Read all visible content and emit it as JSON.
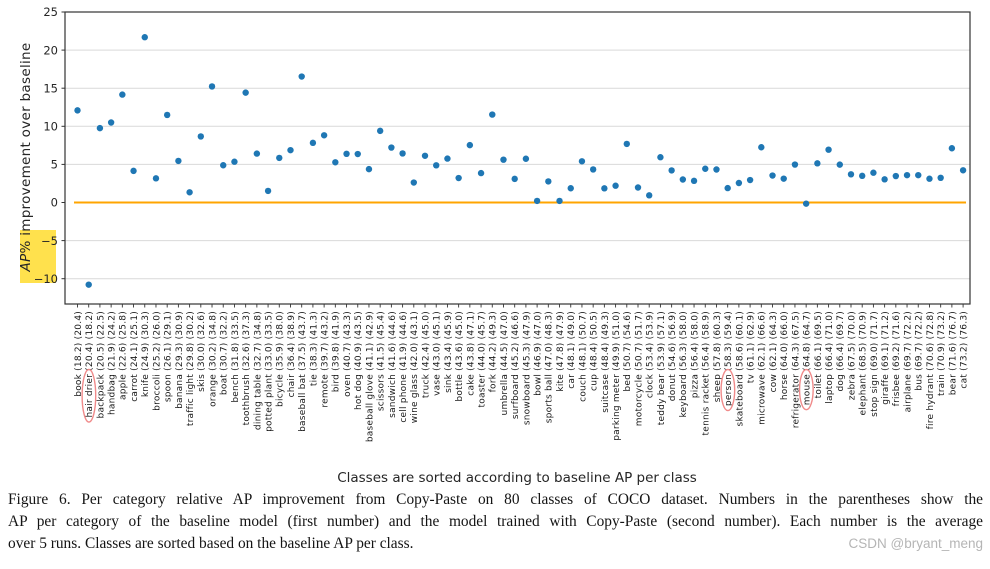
{
  "figure": {
    "caption_lines": [
      "Figure 6. Per category relative AP improvement from Copy-Paste on 80 classes of COCO dataset. Numbers in the parentheses show the",
      "AP per category of the baseline model (first number) and the model trained with Copy-Paste (second number). Each number is the average",
      "over 5 runs. Classes are sorted based on the baseline AP per class."
    ],
    "watermark": "CSDN @bryant_meng"
  },
  "chart_data": {
    "type": "scatter",
    "title": "",
    "xlabel": "Classes are sorted according to baseline AP per class",
    "ylabel": {
      "italic_part": "AP",
      "highlighted_text": "AP%",
      "rest": "% improvement over baseline"
    },
    "ylim": [
      -13.3,
      25
    ],
    "yticks": [
      25,
      20,
      15,
      10,
      5,
      0,
      -5,
      -10
    ],
    "grid": true,
    "legend": "none",
    "zero_line_value": 0,
    "x_label_format": "name (baseline) (copy_paste)",
    "improvement_formula": "(copy_paste - baseline) / baseline * 100",
    "circled_classes": [
      "hair drier",
      "person",
      "mouse"
    ],
    "colors": {
      "point": "#1f77b4",
      "zero_line": "#FFA500",
      "grid": "#d9d9d9",
      "spine": "#333333",
      "tick_text": "#262626",
      "highlight_yellow": "#FFE14D",
      "circle_annotation": "#F08A8A",
      "watermark_gray": "#b5b5b5"
    },
    "classes": [
      {
        "name": "book",
        "baseline": 18.2,
        "copy_paste": 20.4,
        "improvement_pct": 12.09
      },
      {
        "name": "hair drier",
        "baseline": 20.4,
        "copy_paste": 18.2,
        "improvement_pct": -10.78
      },
      {
        "name": "backpack",
        "baseline": 20.5,
        "copy_paste": 22.5,
        "improvement_pct": 9.76
      },
      {
        "name": "handbag",
        "baseline": 21.9,
        "copy_paste": 24.2,
        "improvement_pct": 10.5
      },
      {
        "name": "apple",
        "baseline": 22.6,
        "copy_paste": 25.8,
        "improvement_pct": 14.16
      },
      {
        "name": "carrot",
        "baseline": 24.1,
        "copy_paste": 25.1,
        "improvement_pct": 4.15
      },
      {
        "name": "knife",
        "baseline": 24.9,
        "copy_paste": 30.3,
        "improvement_pct": 21.69
      },
      {
        "name": "broccoli",
        "baseline": 25.2,
        "copy_paste": 26.0,
        "improvement_pct": 3.17
      },
      {
        "name": "spoon",
        "baseline": 26.1,
        "copy_paste": 29.1,
        "improvement_pct": 11.49
      },
      {
        "name": "banana",
        "baseline": 29.3,
        "copy_paste": 30.9,
        "improvement_pct": 5.46
      },
      {
        "name": "traffic light",
        "baseline": 29.8,
        "copy_paste": 30.2,
        "improvement_pct": 1.34
      },
      {
        "name": "skis",
        "baseline": 30.0,
        "copy_paste": 32.6,
        "improvement_pct": 8.67
      },
      {
        "name": "orange",
        "baseline": 30.2,
        "copy_paste": 34.8,
        "improvement_pct": 15.23
      },
      {
        "name": "boat",
        "baseline": 30.7,
        "copy_paste": 32.2,
        "improvement_pct": 4.89
      },
      {
        "name": "bench",
        "baseline": 31.8,
        "copy_paste": 33.5,
        "improvement_pct": 5.35
      },
      {
        "name": "toothbrush",
        "baseline": 32.6,
        "copy_paste": 37.3,
        "improvement_pct": 14.42
      },
      {
        "name": "dining table",
        "baseline": 32.7,
        "copy_paste": 34.8,
        "improvement_pct": 6.42
      },
      {
        "name": "potted plant",
        "baseline": 33.0,
        "copy_paste": 33.5,
        "improvement_pct": 1.52
      },
      {
        "name": "bicycle",
        "baseline": 35.9,
        "copy_paste": 38.0,
        "improvement_pct": 5.85
      },
      {
        "name": "chair",
        "baseline": 36.4,
        "copy_paste": 38.9,
        "improvement_pct": 6.87
      },
      {
        "name": "baseball bat",
        "baseline": 37.5,
        "copy_paste": 43.7,
        "improvement_pct": 16.53
      },
      {
        "name": "tie",
        "baseline": 38.3,
        "copy_paste": 41.3,
        "improvement_pct": 7.83
      },
      {
        "name": "remote",
        "baseline": 39.7,
        "copy_paste": 43.2,
        "improvement_pct": 8.82
      },
      {
        "name": "bird",
        "baseline": 39.8,
        "copy_paste": 41.9,
        "improvement_pct": 5.28
      },
      {
        "name": "oven",
        "baseline": 40.7,
        "copy_paste": 43.3,
        "improvement_pct": 6.39
      },
      {
        "name": "hot dog",
        "baseline": 40.9,
        "copy_paste": 43.5,
        "improvement_pct": 6.36
      },
      {
        "name": "baseball glove",
        "baseline": 41.1,
        "copy_paste": 42.9,
        "improvement_pct": 4.38
      },
      {
        "name": "scissors",
        "baseline": 41.5,
        "copy_paste": 45.4,
        "improvement_pct": 9.4
      },
      {
        "name": "sandwich",
        "baseline": 41.6,
        "copy_paste": 44.6,
        "improvement_pct": 7.21
      },
      {
        "name": "cell phone",
        "baseline": 41.9,
        "copy_paste": 44.6,
        "improvement_pct": 6.44
      },
      {
        "name": "wine glass",
        "baseline": 42.0,
        "copy_paste": 43.1,
        "improvement_pct": 2.62
      },
      {
        "name": "truck",
        "baseline": 42.4,
        "copy_paste": 45.0,
        "improvement_pct": 6.13
      },
      {
        "name": "vase",
        "baseline": 43.0,
        "copy_paste": 45.1,
        "improvement_pct": 4.88
      },
      {
        "name": "sink",
        "baseline": 43.4,
        "copy_paste": 45.9,
        "improvement_pct": 5.76
      },
      {
        "name": "bottle",
        "baseline": 43.6,
        "copy_paste": 45.0,
        "improvement_pct": 3.21
      },
      {
        "name": "cake",
        "baseline": 43.8,
        "copy_paste": 47.1,
        "improvement_pct": 7.53
      },
      {
        "name": "toaster",
        "baseline": 44.0,
        "copy_paste": 45.7,
        "improvement_pct": 3.86
      },
      {
        "name": "fork",
        "baseline": 44.2,
        "copy_paste": 49.3,
        "improvement_pct": 11.54
      },
      {
        "name": "umbrella",
        "baseline": 44.5,
        "copy_paste": 47.0,
        "improvement_pct": 5.62
      },
      {
        "name": "surfboard",
        "baseline": 45.2,
        "copy_paste": 46.6,
        "improvement_pct": 3.1
      },
      {
        "name": "snowboard",
        "baseline": 45.3,
        "copy_paste": 47.9,
        "improvement_pct": 5.74
      },
      {
        "name": "bowl",
        "baseline": 46.9,
        "copy_paste": 47.0,
        "improvement_pct": 0.21
      },
      {
        "name": "sports ball",
        "baseline": 47.0,
        "copy_paste": 48.3,
        "improvement_pct": 2.77
      },
      {
        "name": "kite",
        "baseline": 47.8,
        "copy_paste": 47.9,
        "improvement_pct": 0.21
      },
      {
        "name": "car",
        "baseline": 48.1,
        "copy_paste": 49.0,
        "improvement_pct": 1.87
      },
      {
        "name": "couch",
        "baseline": 48.1,
        "copy_paste": 50.7,
        "improvement_pct": 5.41
      },
      {
        "name": "cup",
        "baseline": 48.4,
        "copy_paste": 50.5,
        "improvement_pct": 4.34
      },
      {
        "name": "suitcase",
        "baseline": 48.4,
        "copy_paste": 49.3,
        "improvement_pct": 1.86
      },
      {
        "name": "parking meter",
        "baseline": 49.9,
        "copy_paste": 51.0,
        "improvement_pct": 2.2
      },
      {
        "name": "bed",
        "baseline": 50.7,
        "copy_paste": 54.6,
        "improvement_pct": 7.69
      },
      {
        "name": "motorcycle",
        "baseline": 50.7,
        "copy_paste": 51.7,
        "improvement_pct": 1.97
      },
      {
        "name": "clock",
        "baseline": 53.4,
        "copy_paste": 53.9,
        "improvement_pct": 0.94
      },
      {
        "name": "teddy bear",
        "baseline": 53.9,
        "copy_paste": 57.1,
        "improvement_pct": 5.94
      },
      {
        "name": "donut",
        "baseline": 54.6,
        "copy_paste": 56.9,
        "improvement_pct": 4.21
      },
      {
        "name": "keyboard",
        "baseline": 56.3,
        "copy_paste": 58.0,
        "improvement_pct": 3.02
      },
      {
        "name": "pizza",
        "baseline": 56.4,
        "copy_paste": 58.0,
        "improvement_pct": 2.84
      },
      {
        "name": "tennis racket",
        "baseline": 56.4,
        "copy_paste": 58.9,
        "improvement_pct": 4.43
      },
      {
        "name": "sheep",
        "baseline": 57.8,
        "copy_paste": 60.3,
        "improvement_pct": 4.33
      },
      {
        "name": "person",
        "baseline": 58.3,
        "copy_paste": 59.4,
        "improvement_pct": 1.89
      },
      {
        "name": "skateboard",
        "baseline": 58.6,
        "copy_paste": 60.1,
        "improvement_pct": 2.56
      },
      {
        "name": "tv",
        "baseline": 61.1,
        "copy_paste": 62.9,
        "improvement_pct": 2.95
      },
      {
        "name": "microwave",
        "baseline": 62.1,
        "copy_paste": 66.6,
        "improvement_pct": 7.25
      },
      {
        "name": "cow",
        "baseline": 62.1,
        "copy_paste": 64.3,
        "improvement_pct": 3.54
      },
      {
        "name": "horse",
        "baseline": 64.0,
        "copy_paste": 66.0,
        "improvement_pct": 3.13
      },
      {
        "name": "refrigerator",
        "baseline": 64.3,
        "copy_paste": 67.5,
        "improvement_pct": 4.98
      },
      {
        "name": "mouse",
        "baseline": 64.8,
        "copy_paste": 64.7,
        "improvement_pct": -0.15
      },
      {
        "name": "toilet",
        "baseline": 66.1,
        "copy_paste": 69.5,
        "improvement_pct": 5.14
      },
      {
        "name": "laptop",
        "baseline": 66.4,
        "copy_paste": 71.0,
        "improvement_pct": 6.93
      },
      {
        "name": "dog",
        "baseline": 66.4,
        "copy_paste": 69.7,
        "improvement_pct": 4.97
      },
      {
        "name": "zebra",
        "baseline": 67.5,
        "copy_paste": 70.0,
        "improvement_pct": 3.7
      },
      {
        "name": "elephant",
        "baseline": 68.5,
        "copy_paste": 70.9,
        "improvement_pct": 3.5
      },
      {
        "name": "stop sign",
        "baseline": 69.0,
        "copy_paste": 71.7,
        "improvement_pct": 3.91
      },
      {
        "name": "giraffe",
        "baseline": 69.1,
        "copy_paste": 71.2,
        "improvement_pct": 3.04
      },
      {
        "name": "frisbee",
        "baseline": 69.2,
        "copy_paste": 71.6,
        "improvement_pct": 3.47
      },
      {
        "name": "airplane",
        "baseline": 69.7,
        "copy_paste": 72.2,
        "improvement_pct": 3.59
      },
      {
        "name": "bus",
        "baseline": 69.7,
        "copy_paste": 72.2,
        "improvement_pct": 3.59
      },
      {
        "name": "fire hydrant",
        "baseline": 70.6,
        "copy_paste": 72.8,
        "improvement_pct": 3.12
      },
      {
        "name": "train",
        "baseline": 70.9,
        "copy_paste": 73.2,
        "improvement_pct": 3.24
      },
      {
        "name": "bear",
        "baseline": 71.6,
        "copy_paste": 76.7,
        "improvement_pct": 7.12
      },
      {
        "name": "cat",
        "baseline": 73.2,
        "copy_paste": 76.3,
        "improvement_pct": 4.23
      }
    ]
  }
}
